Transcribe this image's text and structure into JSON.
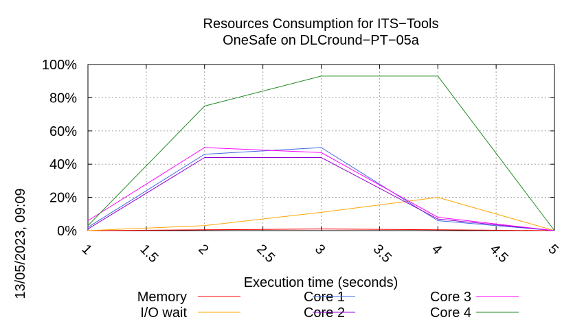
{
  "chart_data": {
    "type": "line",
    "title": "Resources Consumption for ITS−Tools",
    "subtitle": "OneSafe on DLCround−PT−05a",
    "xlabel": "Execution time (seconds)",
    "ylabel": "",
    "side_label": "13/05/2023, 09:09",
    "xlim": [
      1,
      5
    ],
    "ylim": [
      0,
      100
    ],
    "x_ticks": [
      "1",
      "1.5",
      "2",
      "2.5",
      "3",
      "3.5",
      "4",
      "4.5",
      "5"
    ],
    "y_ticks": [
      "0%",
      "20%",
      "40%",
      "60%",
      "80%",
      "100%"
    ],
    "grid": true,
    "legend_position": "bottom",
    "x": [
      1,
      2,
      3,
      4,
      5
    ],
    "series": [
      {
        "name": "Memory",
        "color": "#ff0000",
        "values": [
          0,
          0.5,
          1,
          0.5,
          0
        ]
      },
      {
        "name": "I/O wait",
        "color": "#ffa500",
        "values": [
          0,
          3,
          11,
          20,
          0
        ]
      },
      {
        "name": "Core 1",
        "color": "#4169e1",
        "values": [
          2,
          46,
          50,
          6,
          0
        ]
      },
      {
        "name": "Core 2",
        "color": "#9400d3",
        "values": [
          1,
          44,
          44,
          7,
          0
        ]
      },
      {
        "name": "Core 3",
        "color": "#ff00ff",
        "values": [
          6,
          50,
          47,
          8,
          0
        ]
      },
      {
        "name": "Core 4",
        "color": "#228b22",
        "values": [
          3,
          75,
          93,
          93,
          0
        ]
      }
    ]
  }
}
